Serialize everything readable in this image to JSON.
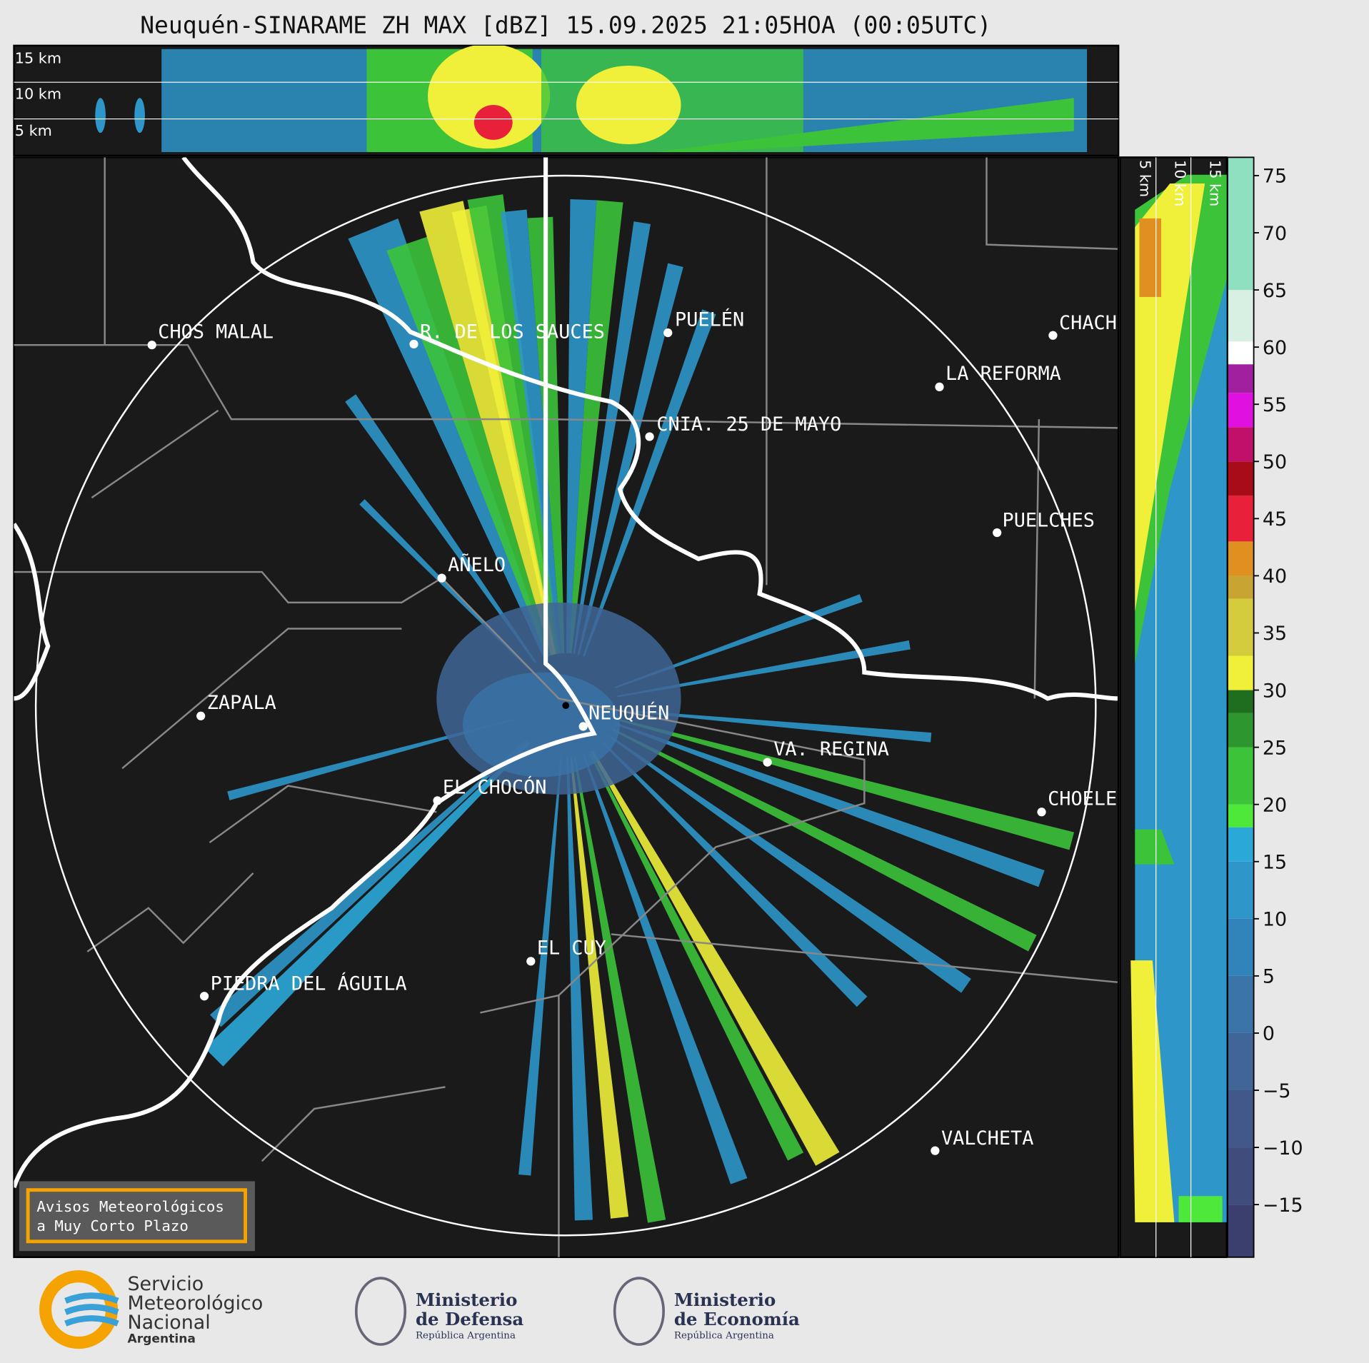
{
  "title": "Neuquén-SINARAME ZH MAX [dBZ] 15.09.2025 21:05HOA (00:05UTC)",
  "top_panel": {
    "height_labels": [
      "15 km",
      "10 km",
      "5 km"
    ]
  },
  "right_panel": {
    "height_labels": [
      "5 km",
      "10 km",
      "15 km"
    ]
  },
  "cities": [
    "CHOS MALAL",
    "R. DE LOS SAUCES",
    "PUELÉN",
    "CHACH",
    "LA REFORMA",
    "CNIA. 25 DE MAYO",
    "PUELCHES",
    "AÑELO",
    "ZAPALA",
    "NEUQUÉN",
    "VA. REGINA",
    "EL CHOCÓN",
    "CHOELE",
    "EL CUY",
    "PIEDRA DEL ÁGUILA",
    "VALCHETA"
  ],
  "colorbar": {
    "lim": [
      -19.6,
      76.6
    ],
    "ticks": [
      75,
      70,
      65,
      60,
      55,
      50,
      45,
      40,
      35,
      30,
      25,
      20,
      15,
      10,
      5,
      0,
      {
        "value": -5,
        "label": "−5"
      },
      {
        "value": -10,
        "label": "−10"
      },
      {
        "value": -15,
        "label": "−15"
      }
    ],
    "bounds": [
      -19.6,
      -15,
      -10,
      -5,
      0,
      5,
      10,
      15,
      18,
      20,
      25,
      28,
      30,
      33,
      38,
      40,
      43,
      47,
      50,
      53,
      56,
      58.5,
      60.5,
      65,
      76.6
    ],
    "colors": [
      "#3b3f6e",
      "#404c7c",
      "#43588a",
      "#3f6697",
      "#3a74a8",
      "#3184ba",
      "#2e96c9",
      "#2aa8d8",
      "#4ee83a",
      "#3cc33a",
      "#2e962e",
      "#1f6e20",
      "#f0ef3a",
      "#d4cc3c",
      "#c8a432",
      "#e09020",
      "#e8203a",
      "#a80c18",
      "#c0106a",
      "#e010e0",
      "#a020a0",
      "#ffffff",
      "#d8f0e4",
      "#8ee0c0"
    ]
  },
  "notice": [
    "Avisos Meteorológicos",
    "a Muy Corto Plazo"
  ],
  "logos": {
    "smn": [
      "Servicio",
      "Meteorológico",
      "Nacional",
      "Argentina"
    ],
    "defensa": [
      "Ministerio",
      "de Defensa",
      "República Argentina"
    ],
    "economia": [
      "Ministerio",
      "de Economía",
      "República Argentina"
    ]
  }
}
